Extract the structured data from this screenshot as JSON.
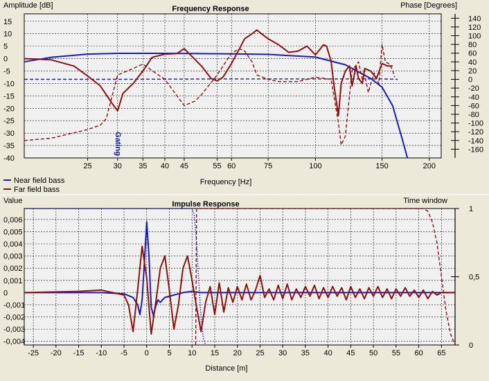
{
  "colors": {
    "background": "#ece9d8",
    "plot_bg": "#f0f0f0",
    "grid": "#000000",
    "near": "#1a1ab8",
    "far": "#8b1010"
  },
  "chart_data": [
    {
      "type": "line",
      "title": "Frequency Response",
      "ylabel": "Amplitude [dB]",
      "y2label": "Phase [Degrees]",
      "xlabel": "Frequency [Hz]",
      "x_scale": "log",
      "xlim": [
        17,
        215
      ],
      "ylim": [
        -40,
        18
      ],
      "y2lim": [
        -180,
        150
      ],
      "x_ticks": [
        25,
        30,
        35,
        40,
        45,
        55,
        60,
        75,
        100,
        150,
        200
      ],
      "x_tick_labels": [
        "25",
        "30",
        "35",
        "40",
        "45",
        "55",
        "60",
        "75",
        "100",
        "150",
        "200"
      ],
      "y_ticks": [
        15,
        10,
        5,
        0,
        -5,
        -10,
        -15,
        -20,
        -25,
        -30,
        -35,
        -40
      ],
      "y_tick_labels": [
        "15",
        "10",
        "5",
        "0",
        "-5",
        "-10",
        "-15",
        "-20",
        "-25",
        "-30",
        "-35",
        "-40"
      ],
      "y2_ticks": [
        140,
        120,
        100,
        80,
        60,
        40,
        20,
        0,
        -20,
        -40,
        -60,
        -80,
        -100,
        -120,
        -140,
        -160
      ],
      "y2_tick_labels": [
        "140",
        "120",
        "100",
        "80",
        "60",
        "40",
        "20",
        "0",
        "-20",
        "-40",
        "-60",
        "-80",
        "-100",
        "-120",
        "-140",
        "-160"
      ],
      "annotations": [
        {
          "text": "Gating",
          "x": 30
        }
      ],
      "grid": true,
      "legend": [
        "Near field bass",
        "Far field bass"
      ],
      "legend_placement": "below plot, left",
      "series": [
        {
          "name": "Near field bass",
          "style": "solid",
          "axis": "amplitude",
          "x": [
            17,
            20,
            25,
            30,
            40,
            50,
            60,
            75,
            100,
            120,
            140,
            150,
            160,
            170,
            175
          ],
          "y": [
            -1.3,
            0.5,
            1.8,
            2.1,
            2.1,
            2.0,
            1.9,
            1.7,
            0.6,
            -2.5,
            -8,
            -11.5,
            -19,
            -33,
            -40
          ]
        },
        {
          "name": "Near field bass",
          "style": "dashed",
          "axis": "phase",
          "x": [
            17,
            30,
            60,
            100,
            150,
            165
          ],
          "y": [
            0,
            0,
            1,
            1,
            1,
            0
          ]
        },
        {
          "name": "Far field bass",
          "style": "solid",
          "axis": "amplitude",
          "x": [
            17,
            20,
            23,
            25,
            27,
            29,
            30,
            31,
            33,
            35,
            37,
            40,
            43,
            45,
            50,
            53,
            55,
            57,
            60,
            63,
            65,
            68,
            70,
            72,
            75,
            80,
            85,
            90,
            95,
            100,
            105,
            107,
            110,
            112,
            115,
            117,
            120,
            123,
            125,
            128,
            130,
            133,
            135,
            140,
            145,
            150,
            155,
            160
          ],
          "y": [
            0,
            -0.5,
            -3,
            -7,
            -11,
            -18,
            -21,
            -14,
            -10,
            -5,
            0.5,
            1.8,
            2,
            4,
            -3,
            -8,
            -9,
            -7.5,
            -2,
            4,
            8,
            10,
            11.5,
            10,
            8,
            5.5,
            2.5,
            3,
            5,
            1.5,
            5.5,
            5,
            -1,
            -11,
            -23,
            -10,
            -5,
            -3,
            -11,
            -3,
            -8,
            -10,
            -4,
            -5,
            -8,
            -2,
            -3,
            -3
          ]
        },
        {
          "name": "Far field bass",
          "style": "dashed",
          "axis": "phase",
          "x": [
            17,
            20,
            25,
            27,
            28,
            30,
            31,
            32,
            33,
            35,
            37,
            40,
            45,
            48,
            50,
            55,
            60,
            63,
            65,
            68,
            70,
            75,
            80,
            90,
            100,
            110,
            115,
            117,
            120,
            125,
            130,
            133,
            135,
            138,
            140,
            143,
            147,
            150,
            153,
            157,
            160,
            162
          ],
          "y": [
            -140,
            -135,
            -115,
            -105,
            -90,
            10,
            15,
            20,
            25,
            35,
            20,
            0,
            -60,
            -50,
            -35,
            10,
            60,
            70,
            65,
            40,
            10,
            0,
            -5,
            -5,
            5,
            0,
            -100,
            -150,
            -130,
            20,
            40,
            0,
            10,
            -30,
            -10,
            15,
            -10,
            80,
            40,
            35,
            20,
            5
          ]
        }
      ]
    },
    {
      "type": "line",
      "title": "Impulse Response",
      "ylabel": "Value",
      "y2label": "Time window",
      "xlabel": "Distance [m]",
      "xlim": [
        -27,
        68
      ],
      "ylim": [
        -0.0043,
        0.0069
      ],
      "y2lim": [
        0,
        1
      ],
      "x_ticks": [
        -25,
        -20,
        -15,
        -10,
        -5,
        0,
        5,
        10,
        15,
        20,
        25,
        30,
        35,
        40,
        45,
        50,
        55,
        60,
        65
      ],
      "x_tick_labels": [
        "-25",
        "-20",
        "-15",
        "-10",
        "-5",
        "0",
        "5",
        "10",
        "15",
        "20",
        "25",
        "30",
        "35",
        "40",
        "45",
        "50",
        "55",
        "60",
        "65"
      ],
      "y_ticks": [
        0.006,
        0.005,
        0.004,
        0.003,
        0.002,
        0.001,
        0,
        -0.001,
        -0.002,
        -0.003,
        -0.004
      ],
      "y_tick_labels": [
        "0,006",
        "0,005",
        "0,004",
        "0,003",
        "0,002",
        "0,001",
        "0",
        "-0,001",
        "-0,002",
        "-0,003",
        "-0,004"
      ],
      "y2_ticks": [
        1,
        0.5,
        0
      ],
      "y2_tick_labels": [
        "1",
        "0,5",
        "0"
      ],
      "grid": true,
      "series": [
        {
          "name": "Near field bass",
          "style": "solid",
          "axis": "value",
          "x": [
            -27,
            -10,
            -5,
            -3,
            -2.5,
            -2,
            -1.5,
            -1,
            -0.5,
            0,
            0.5,
            1,
            1.5,
            2,
            2.5,
            3,
            4,
            6,
            8,
            10,
            12,
            20,
            68
          ],
          "y": [
            0,
            0,
            -0.0001,
            -0.0004,
            -0.0007,
            -0.001,
            -0.0018,
            -0.0006,
            0.0025,
            0.0058,
            0.003,
            -0.0012,
            -0.0019,
            -0.0011,
            -0.0006,
            -0.0008,
            -0.0004,
            -0.0002,
            0,
            0.0001,
            0,
            0,
            0
          ]
        },
        {
          "name": "Far field bass",
          "style": "solid",
          "axis": "value",
          "x": [
            -27,
            -15,
            -10,
            -5,
            -4,
            -3,
            -2,
            -1,
            0,
            1,
            2,
            3,
            4,
            5,
            6,
            7,
            8,
            9,
            10,
            11,
            12,
            13,
            14,
            15,
            16,
            17,
            18,
            19,
            20,
            21,
            22,
            23,
            24,
            25,
            26,
            27,
            28,
            29,
            30,
            31,
            32,
            33,
            34,
            35,
            36,
            37,
            38,
            39,
            40,
            41,
            42,
            43,
            44,
            45,
            46,
            47,
            48,
            49,
            50,
            51,
            52,
            53,
            54,
            55,
            56,
            57,
            58,
            59,
            60,
            61,
            62,
            63,
            64,
            65,
            66,
            68
          ],
          "y": [
            0,
            0.0001,
            0.0002,
            -0.0002,
            -0.001,
            -0.0032,
            0.0002,
            0.0038,
            0.0012,
            -0.0034,
            -0.0008,
            0.002,
            0.003,
            0.0002,
            -0.003,
            -0.001,
            0.002,
            0.003,
            0.001,
            -0.0012,
            -0.0032,
            -0.0008,
            0.0005,
            -0.0018,
            0.0008,
            -0.0016,
            0.0004,
            -0.0008,
            0.0005,
            -0.0006,
            0.0007,
            -0.0006,
            0.0002,
            0.0014,
            -0.0004,
            0.0003,
            -0.0006,
            0.0006,
            -0.0005,
            0.0007,
            -0.0006,
            0.0003,
            -0.0004,
            0.0005,
            -0.0003,
            0.0006,
            -0.0005,
            0.0004,
            -0.0004,
            0.0005,
            -0.0003,
            0.0004,
            -0.0006,
            0.0005,
            -0.0004,
            0.0003,
            -0.0005,
            0.0004,
            -0.0003,
            0.0005,
            -0.0004,
            0.0003,
            -0.0005,
            0.0003,
            -0.0003,
            0.0004,
            -0.0003,
            0.0002,
            -0.0004,
            0.0002,
            -0.0005,
            0.0001,
            -0.0002,
            0,
            0,
            0
          ]
        },
        {
          "name": "Near field bass",
          "style": "dotted",
          "axis": "time_window",
          "x": [
            -27,
            10,
            10.5,
            11,
            11.5,
            12,
            12.5,
            13
          ],
          "y": [
            1,
            1,
            0.95,
            0.75,
            0.45,
            0.2,
            0.05,
            0
          ]
        },
        {
          "name": "Far field bass",
          "style": "dashed",
          "axis": "time_window",
          "x": [
            10.8,
            11,
            61,
            62,
            63,
            64,
            65,
            66,
            67,
            68
          ],
          "y": [
            0,
            1,
            1,
            0.98,
            0.9,
            0.75,
            0.5,
            0.25,
            0.08,
            0
          ]
        }
      ]
    }
  ]
}
